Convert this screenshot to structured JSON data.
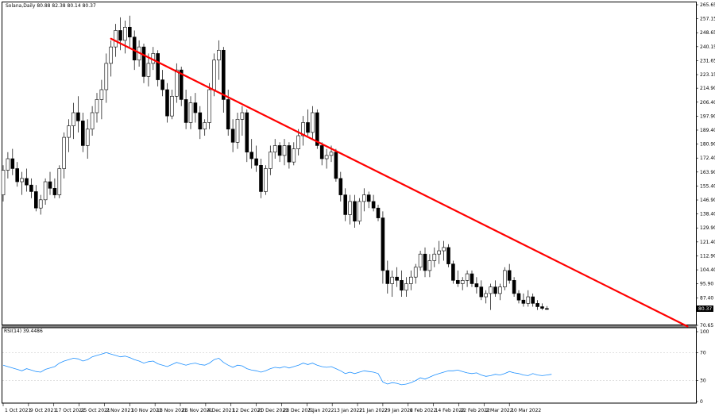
{
  "chart_data": {
    "type": "candlestick",
    "symbol": "Solana",
    "timeframe": "Daily",
    "header_ohlc": [
      "80.88",
      "82.38",
      "80.14",
      "80.37"
    ],
    "last_price": "80.37",
    "price_ticks": [
      "265.65",
      "257.15",
      "248.65",
      "240.15",
      "231.65",
      "223.15",
      "214.90",
      "206.40",
      "197.90",
      "189.40",
      "180.90",
      "172.40",
      "163.90",
      "155.40",
      "146.90",
      "138.40",
      "129.90",
      "121.40",
      "112.90",
      "104.40",
      "95.90",
      "87.40",
      "70.65"
    ],
    "date_ticks": [
      "1 Oct 2021",
      "9 Oct 2021",
      "17 Oct 2021",
      "25 Oct 2021",
      "2 Nov 2021",
      "10 Nov 2021",
      "18 Nov 2021",
      "26 Nov 2021",
      "4 Dec 2021",
      "12 Dec 2021",
      "20 Dec 2021",
      "28 Dec 2021",
      "5 Jan 2022",
      "13 Jan 2022",
      "21 Jan 2022",
      "29 Jan 2022",
      "6 Feb 2022",
      "14 Feb 2022",
      "22 Feb 2022",
      "2 Mar 2022",
      "10 Mar 2022"
    ],
    "ohlc": [
      [
        150,
        168,
        146,
        165
      ],
      [
        165,
        176,
        160,
        172
      ],
      [
        172,
        178,
        162,
        166
      ],
      [
        166,
        170,
        155,
        158
      ],
      [
        158,
        164,
        150,
        160
      ],
      [
        160,
        166,
        152,
        156
      ],
      [
        156,
        160,
        148,
        152
      ],
      [
        152,
        156,
        140,
        142
      ],
      [
        142,
        150,
        138,
        147
      ],
      [
        147,
        160,
        144,
        158
      ],
      [
        158,
        164,
        150,
        154
      ],
      [
        154,
        160,
        148,
        150
      ],
      [
        150,
        168,
        148,
        166
      ],
      [
        166,
        188,
        160,
        185
      ],
      [
        185,
        196,
        176,
        192
      ],
      [
        192,
        206,
        184,
        200
      ],
      [
        200,
        210,
        188,
        195
      ],
      [
        195,
        200,
        176,
        180
      ],
      [
        180,
        196,
        172,
        190
      ],
      [
        190,
        204,
        186,
        200
      ],
      [
        200,
        212,
        194,
        208
      ],
      [
        208,
        220,
        196,
        214
      ],
      [
        214,
        236,
        206,
        230
      ],
      [
        230,
        244,
        222,
        240
      ],
      [
        240,
        254,
        234,
        250
      ],
      [
        250,
        258,
        238,
        244
      ],
      [
        244,
        256,
        236,
        252
      ],
      [
        252,
        259,
        240,
        246
      ],
      [
        246,
        250,
        226,
        232
      ],
      [
        232,
        244,
        228,
        240
      ],
      [
        240,
        242,
        218,
        222
      ],
      [
        222,
        236,
        216,
        230
      ],
      [
        230,
        240,
        226,
        236
      ],
      [
        236,
        238,
        216,
        220
      ],
      [
        220,
        226,
        210,
        214
      ],
      [
        214,
        218,
        194,
        198
      ],
      [
        198,
        214,
        196,
        210
      ],
      [
        210,
        230,
        206,
        226
      ],
      [
        226,
        228,
        204,
        208
      ],
      [
        208,
        214,
        190,
        194
      ],
      [
        194,
        210,
        190,
        206
      ],
      [
        206,
        212,
        194,
        200
      ],
      [
        200,
        204,
        184,
        190
      ],
      [
        190,
        196,
        186,
        194
      ],
      [
        194,
        218,
        190,
        214
      ],
      [
        214,
        236,
        210,
        232
      ],
      [
        232,
        244,
        220,
        238
      ],
      [
        238,
        240,
        200,
        208
      ],
      [
        208,
        214,
        186,
        190
      ],
      [
        190,
        196,
        176,
        182
      ],
      [
        182,
        200,
        178,
        196
      ],
      [
        196,
        204,
        186,
        200
      ],
      [
        200,
        202,
        170,
        176
      ],
      [
        176,
        184,
        166,
        172
      ],
      [
        172,
        180,
        164,
        168
      ],
      [
        168,
        172,
        148,
        152
      ],
      [
        152,
        168,
        150,
        166
      ],
      [
        166,
        180,
        162,
        176
      ],
      [
        176,
        184,
        172,
        180
      ],
      [
        180,
        182,
        170,
        174
      ],
      [
        174,
        184,
        168,
        180
      ],
      [
        180,
        182,
        166,
        170
      ],
      [
        170,
        182,
        168,
        178
      ],
      [
        178,
        190,
        174,
        186
      ],
      [
        186,
        198,
        180,
        194
      ],
      [
        194,
        202,
        186,
        188
      ],
      [
        188,
        204,
        184,
        200
      ],
      [
        200,
        202,
        178,
        180
      ],
      [
        180,
        182,
        168,
        172
      ],
      [
        172,
        178,
        166,
        174
      ],
      [
        174,
        180,
        170,
        176
      ],
      [
        176,
        178,
        158,
        160
      ],
      [
        160,
        164,
        146,
        150
      ],
      [
        150,
        154,
        134,
        138
      ],
      [
        138,
        150,
        132,
        146
      ],
      [
        146,
        150,
        130,
        134
      ],
      [
        134,
        148,
        132,
        146
      ],
      [
        146,
        154,
        140,
        150
      ],
      [
        150,
        152,
        142,
        146
      ],
      [
        146,
        150,
        140,
        142
      ],
      [
        142,
        144,
        134,
        136
      ],
      [
        136,
        140,
        96,
        104
      ],
      [
        104,
        110,
        90,
        96
      ],
      [
        96,
        104,
        88,
        100
      ],
      [
        100,
        106,
        94,
        98
      ],
      [
        98,
        104,
        88,
        92
      ],
      [
        92,
        100,
        88,
        96
      ],
      [
        96,
        104,
        92,
        100
      ],
      [
        100,
        108,
        96,
        106
      ],
      [
        106,
        116,
        104,
        114
      ],
      [
        114,
        118,
        100,
        104
      ],
      [
        104,
        114,
        100,
        110
      ],
      [
        110,
        118,
        106,
        114
      ],
      [
        114,
        122,
        108,
        116
      ],
      [
        116,
        122,
        110,
        118
      ],
      [
        118,
        120,
        106,
        108
      ],
      [
        108,
        110,
        96,
        98
      ],
      [
        98,
        104,
        94,
        96
      ],
      [
        96,
        100,
        92,
        98
      ],
      [
        98,
        104,
        94,
        102
      ],
      [
        102,
        104,
        94,
        96
      ],
      [
        96,
        100,
        90,
        94
      ],
      [
        94,
        98,
        86,
        88
      ],
      [
        88,
        92,
        84,
        90
      ],
      [
        90,
        96,
        80,
        94
      ],
      [
        94,
        98,
        88,
        90
      ],
      [
        90,
        96,
        86,
        94
      ],
      [
        94,
        106,
        92,
        104
      ],
      [
        104,
        108,
        96,
        98
      ],
      [
        98,
        100,
        88,
        90
      ],
      [
        90,
        92,
        84,
        86
      ],
      [
        86,
        90,
        82,
        84
      ],
      [
        84,
        92,
        82,
        88
      ],
      [
        88,
        90,
        82,
        84
      ],
      [
        84,
        86,
        80,
        82
      ],
      [
        82,
        84,
        80,
        81
      ],
      [
        80.88,
        82.38,
        80.14,
        80.37
      ]
    ],
    "trendline": [
      [
        23,
        245
      ],
      [
        146,
        70
      ]
    ],
    "rsi": {
      "label": "RSI(14) 39.4486",
      "ticks": [
        "100",
        "70",
        "30",
        "0"
      ],
      "ylim": [
        0,
        100
      ],
      "values": [
        52,
        50,
        48,
        46,
        44,
        47,
        45,
        43,
        42,
        46,
        48,
        50,
        55,
        58,
        60,
        62,
        61,
        58,
        60,
        64,
        66,
        68,
        70,
        68,
        66,
        64,
        65,
        63,
        60,
        58,
        55,
        57,
        58,
        54,
        52,
        50,
        53,
        56,
        54,
        52,
        54,
        55,
        53,
        52,
        55,
        60,
        62,
        56,
        52,
        49,
        52,
        51,
        47,
        45,
        44,
        42,
        44,
        47,
        49,
        48,
        50,
        48,
        50,
        52,
        55,
        53,
        55,
        52,
        50,
        49,
        50,
        47,
        44,
        40,
        42,
        40,
        42,
        44,
        43,
        42,
        40,
        28,
        25,
        27,
        26,
        24,
        25,
        27,
        30,
        34,
        32,
        35,
        38,
        40,
        42,
        44,
        44,
        45,
        43,
        41,
        40,
        41,
        38,
        36,
        37,
        39,
        38,
        40,
        43,
        41,
        40,
        38,
        37,
        40,
        38,
        37,
        38,
        39
      ]
    }
  }
}
